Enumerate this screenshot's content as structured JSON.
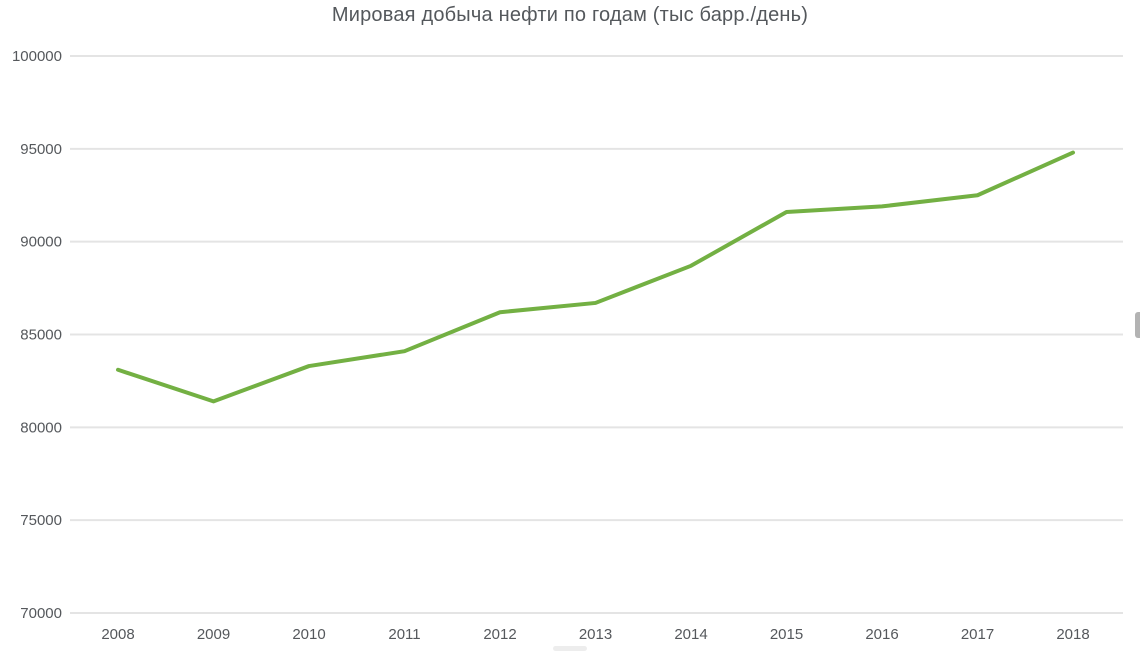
{
  "page": {
    "background": "#ffffff"
  },
  "chart_data": {
    "type": "line",
    "title": "Мировая добыча нефти по годам (тыс барр./день)",
    "categories": [
      "2008",
      "2009",
      "2010",
      "2011",
      "2012",
      "2013",
      "2014",
      "2015",
      "2016",
      "2017",
      "2018"
    ],
    "series": [
      {
        "name": "Мировая добыча нефти (тыс барр./день)",
        "values": [
          83100,
          81400,
          83300,
          84100,
          86200,
          86700,
          88700,
          91600,
          91900,
          92500,
          94800
        ],
        "color": "#73b043"
      }
    ],
    "xlabel": "",
    "ylabel": "",
    "ylim": [
      70000,
      100000
    ],
    "yticks": [
      70000,
      75000,
      80000,
      85000,
      90000,
      95000,
      100000
    ],
    "grid": "horizontal",
    "legend": "none",
    "colors": {
      "gridline": "#e4e4e4",
      "tick_label": "#55585c",
      "title": "#54585c"
    }
  },
  "decorations": {
    "vertical_scrollbar_color": "#b3b3b3",
    "bottom_smudge_color": "#ededed"
  }
}
